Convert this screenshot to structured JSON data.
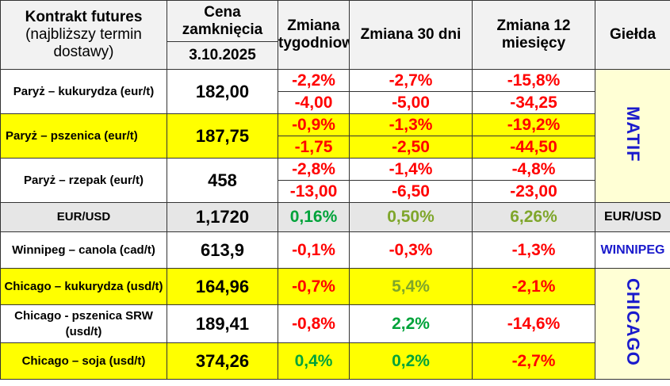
{
  "header": {
    "col1_title": "Kontrakt futures",
    "col1_sub": "(najbliższy termin dostawy)",
    "col2_title": "Cena zamknięcia",
    "col2_date": "3.10.2025",
    "col3": "Zmiana tygodniowa",
    "col4": "Zmiana 30 dni",
    "col5": "Zmiana 12 miesięcy",
    "col6": "Giełda"
  },
  "rows": [
    {
      "name": "Paryż – kukurydza (eur/t)",
      "price": "182,00",
      "w1": "-2,2%",
      "m1": "-2,7%",
      "y1": "-15,8%",
      "w2": "-4,00",
      "m2": "-5,00",
      "y2": "-34,25"
    },
    {
      "name": "Paryż – pszenica (eur/t)",
      "price": "187,75",
      "w1": "-0,9%",
      "m1": "-1,3%",
      "y1": "-19,2%",
      "w2": "-1,75",
      "m2": "-2,50",
      "y2": "-44,50"
    },
    {
      "name": "Paryż – rzepak (eur/t)",
      "price": "458",
      "w1": "-2,8%",
      "m1": "-1,4%",
      "y1": "-4,8%",
      "w2": "-13,00",
      "m2": "-6,50",
      "y2": "-23,00"
    },
    {
      "name": "EUR/USD",
      "price": "1,1720",
      "w": "0,16%",
      "m": "0,50%",
      "y": "6,26%"
    },
    {
      "name": "Winnipeg – canola (cad/t)",
      "price": "613,9",
      "w": "-0,1%",
      "m": "-0,3%",
      "y": "-1,3%"
    },
    {
      "name": "Chicago – kukurydza (usd/t)",
      "price": "164,96",
      "w": "-0,7%",
      "m": "5,4%",
      "y": "-2,1%"
    },
    {
      "name": "Chicago - pszenica SRW (usd/t)",
      "price": "189,41",
      "w": "-0,8%",
      "m": "2,2%",
      "y": "-14,6%"
    },
    {
      "name": "Chicago – soja (usd/t)",
      "price": "374,26",
      "w": "0,4%",
      "m": "0,2%",
      "y": "-2,7%"
    }
  ],
  "exchanges": {
    "matif": "MATIF",
    "eurusd": "EUR/USD",
    "winnipeg": "WINNIPEG",
    "chicago": "CHICAGO"
  },
  "colors": {
    "negative": "#ff0000",
    "positive": "#00a33a",
    "positive_olive": "#7fa62b",
    "highlight": "#ffff00",
    "exchange_label": "#1a1acc"
  }
}
